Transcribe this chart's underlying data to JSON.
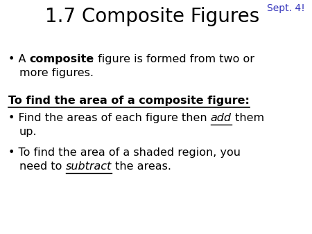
{
  "title": "1.7 Composite Figures",
  "title_fontsize": 20,
  "title_color": "#000000",
  "date_label": "Sept. 4!",
  "date_color": "#3333bb",
  "date_fontsize": 10,
  "background_color": "#ffffff",
  "body_fontsize": 11.5,
  "body_color": "#000000",
  "heading2": "To find the area of a composite figure:",
  "heading2_fontsize": 11.5,
  "heading2_color": "#000000",
  "bullet": "•"
}
